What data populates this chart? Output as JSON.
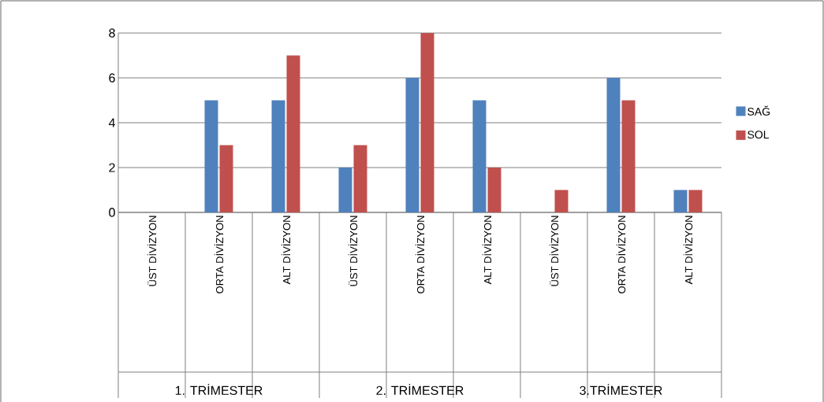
{
  "chart_data": {
    "type": "bar",
    "categories": [
      "ÜST DİVİZYON",
      "ORTA DİVİZYON",
      "ALT DİVİZYON",
      "ÜST DİVİZYON",
      "ORTA DİVİZYON",
      "ALT DİVİZYON",
      "ÜST DİVİZYON",
      "ORTA DİVİZYON",
      "ALT DİVİZYON"
    ],
    "series": [
      {
        "name": "SAĞ",
        "color": "#4f81bd",
        "values": [
          0,
          5,
          5,
          2,
          6,
          5,
          0,
          6,
          1
        ]
      },
      {
        "name": "SOL",
        "color": "#c0504d",
        "values": [
          0,
          3,
          7,
          3,
          8,
          2,
          1,
          5,
          1
        ]
      }
    ],
    "annotations": [
      "1. TRİMESTER",
      "2. TRİMESTER",
      "3.TRİMESTER"
    ],
    "ylim": [
      0,
      8
    ],
    "yticks": [
      0,
      2,
      4,
      6,
      8
    ],
    "grid": "y",
    "legend": "right"
  }
}
